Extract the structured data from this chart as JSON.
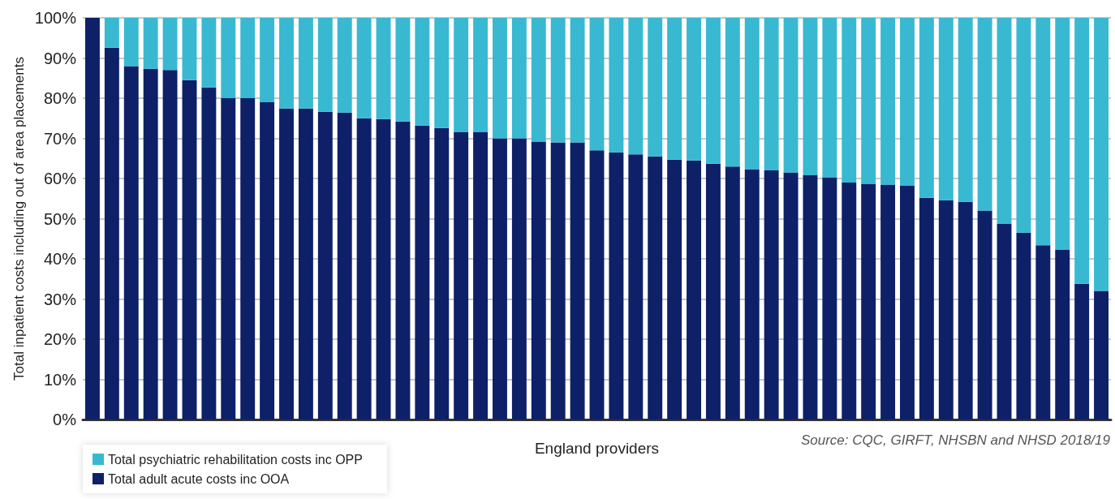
{
  "chart_data": {
    "type": "bar",
    "stacked": true,
    "xlabel": "England providers",
    "ylabel": "Total inpatient costs including out of area placements",
    "annotations": [
      "Source: CQC, GIRFT, NHSBN and NHSD 2018/19"
    ],
    "categories": [
      null,
      null,
      null,
      null,
      null,
      null,
      null,
      null,
      null,
      null,
      null,
      null,
      null,
      null,
      null,
      null,
      null,
      null,
      null,
      null,
      null,
      null,
      null,
      null,
      null,
      null,
      null,
      null,
      null,
      null,
      null,
      null,
      null,
      null,
      null,
      null,
      null,
      null,
      null,
      null,
      null,
      null,
      null,
      null,
      null,
      null,
      null,
      null,
      null,
      null,
      null,
      null,
      null
    ],
    "series": [
      {
        "name": "Total adult acute costs inc OOA",
        "color": "#0d2068",
        "values": [
          100,
          92.6,
          88,
          87.3,
          87,
          84.5,
          82.7,
          80,
          80,
          79,
          77.4,
          77.4,
          76.6,
          76.4,
          75,
          74.8,
          74.2,
          73.2,
          72.6,
          71.6,
          71.6,
          70,
          70,
          69.2,
          69,
          69,
          67,
          66.5,
          66,
          65.5,
          64.7,
          64.5,
          63.7,
          63,
          62.2,
          62,
          61.5,
          60.8,
          60.3,
          59,
          58.7,
          58.5,
          58.2,
          55.2,
          54.6,
          54.2,
          52,
          48.7,
          46.5,
          43.4,
          42.2,
          33.8,
          32
        ]
      },
      {
        "name": "Total psychiatric rehabilitation costs inc OPP",
        "color": "#38b9d1",
        "values": [
          0,
          7.4,
          12,
          12.7,
          13,
          15.5,
          17.3,
          20,
          20,
          21,
          22.6,
          22.6,
          23.4,
          23.6,
          25,
          25.2,
          25.8,
          26.8,
          27.4,
          28.4,
          28.4,
          30,
          30,
          30.8,
          31,
          31,
          33,
          33.5,
          34,
          34.5,
          35.3,
          35.5,
          36.3,
          37,
          37.8,
          38,
          38.5,
          39.2,
          39.7,
          41,
          41.3,
          41.5,
          41.8,
          44.8,
          45.4,
          45.8,
          48,
          51.3,
          53.5,
          56.6,
          57.8,
          66.2,
          68
        ]
      }
    ],
    "ylim": [
      0,
      100
    ],
    "yticks": [
      {
        "value": 0,
        "label": "0%"
      },
      {
        "value": 10,
        "label": "10%"
      },
      {
        "value": 20,
        "label": "20%"
      },
      {
        "value": 30,
        "label": "30%"
      },
      {
        "value": 40,
        "label": "40%"
      },
      {
        "value": 50,
        "label": "50%"
      },
      {
        "value": 60,
        "label": "60%"
      },
      {
        "value": 70,
        "label": "70%"
      },
      {
        "value": 80,
        "label": "80%"
      },
      {
        "value": 90,
        "label": "90%"
      },
      {
        "value": 100,
        "label": "100%"
      }
    ],
    "grid": "y",
    "legend": "bottom left"
  }
}
